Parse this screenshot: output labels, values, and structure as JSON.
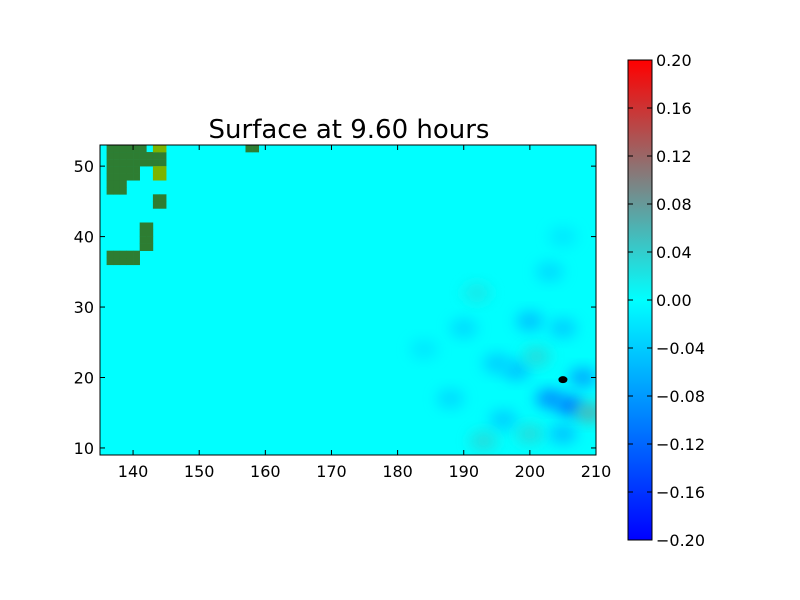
{
  "chart_data": {
    "type": "heatmap",
    "title": "Surface at 9.60 hours",
    "xlabel": "",
    "ylabel": "",
    "xlim": [
      135,
      210
    ],
    "ylim": [
      9,
      53
    ],
    "x_ticks": [
      "140",
      "150",
      "160",
      "170",
      "180",
      "190",
      "200",
      "210"
    ],
    "y_ticks": [
      "10",
      "20",
      "30",
      "40",
      "50"
    ],
    "colorbar": {
      "range": [
        -0.2,
        0.2
      ],
      "ticks": [
        "0.20",
        "0.16",
        "0.12",
        "0.08",
        "0.04",
        "0.00",
        "−0.04",
        "−0.08",
        "−0.12",
        "−0.16",
        "−0.20"
      ],
      "colors": [
        {
          "value": -0.2,
          "color": "#0000ff"
        },
        {
          "value": -0.1,
          "color": "#0080ff"
        },
        {
          "value": 0.0,
          "color": "#00ffff"
        },
        {
          "value": 0.05,
          "color": "#40c0c0"
        },
        {
          "value": 0.1,
          "color": "#808080"
        },
        {
          "value": 0.15,
          "color": "#c04040"
        },
        {
          "value": 0.2,
          "color": "#ff0000"
        }
      ]
    },
    "background_value": 0.0,
    "land_color": "#2e7d32",
    "shallow_land_color": "#7cb300",
    "land_cells": [
      {
        "lon": 136,
        "lat": 50
      },
      {
        "lon": 137,
        "lat": 50
      },
      {
        "lon": 138,
        "lat": 50
      },
      {
        "lon": 139,
        "lat": 50
      },
      {
        "lon": 140,
        "lat": 50
      },
      {
        "lon": 141,
        "lat": 50
      },
      {
        "lon": 142,
        "lat": 50
      },
      {
        "lon": 136,
        "lat": 51
      },
      {
        "lon": 137,
        "lat": 51
      },
      {
        "lon": 138,
        "lat": 51
      },
      {
        "lon": 139,
        "lat": 51
      },
      {
        "lon": 140,
        "lat": 51
      },
      {
        "lon": 141,
        "lat": 51
      },
      {
        "lon": 142,
        "lat": 51
      },
      {
        "lon": 136,
        "lat": 52
      },
      {
        "lon": 137,
        "lat": 52
      },
      {
        "lon": 138,
        "lat": 52
      },
      {
        "lon": 139,
        "lat": 52
      },
      {
        "lon": 140,
        "lat": 52
      },
      {
        "lon": 141,
        "lat": 52
      },
      {
        "lon": 136,
        "lat": 48
      },
      {
        "lon": 137,
        "lat": 48
      },
      {
        "lon": 138,
        "lat": 48
      },
      {
        "lon": 139,
        "lat": 48
      },
      {
        "lon": 140,
        "lat": 48
      },
      {
        "lon": 136,
        "lat": 49
      },
      {
        "lon": 137,
        "lat": 49
      },
      {
        "lon": 138,
        "lat": 49
      },
      {
        "lon": 139,
        "lat": 49
      },
      {
        "lon": 140,
        "lat": 49
      },
      {
        "lon": 136,
        "lat": 47
      },
      {
        "lon": 137,
        "lat": 47
      },
      {
        "lon": 138,
        "lat": 47
      },
      {
        "lon": 136,
        "lat": 46
      },
      {
        "lon": 137,
        "lat": 46
      },
      {
        "lon": 138,
        "lat": 46
      },
      {
        "lon": 143,
        "lat": 50
      },
      {
        "lon": 144,
        "lat": 50
      },
      {
        "lon": 143,
        "lat": 51
      },
      {
        "lon": 144,
        "lat": 51
      },
      {
        "lon": 143,
        "lat": 44
      },
      {
        "lon": 144,
        "lat": 44
      },
      {
        "lon": 143,
        "lat": 45
      },
      {
        "lon": 144,
        "lat": 45
      },
      {
        "lon": 141,
        "lat": 38
      },
      {
        "lon": 142,
        "lat": 38
      },
      {
        "lon": 141,
        "lat": 39
      },
      {
        "lon": 142,
        "lat": 39
      },
      {
        "lon": 141,
        "lat": 40
      },
      {
        "lon": 142,
        "lat": 40
      },
      {
        "lon": 141,
        "lat": 41
      },
      {
        "lon": 142,
        "lat": 41
      },
      {
        "lon": 136,
        "lat": 36
      },
      {
        "lon": 137,
        "lat": 36
      },
      {
        "lon": 138,
        "lat": 36
      },
      {
        "lon": 139,
        "lat": 36
      },
      {
        "lon": 140,
        "lat": 36
      },
      {
        "lon": 136,
        "lat": 37
      },
      {
        "lon": 137,
        "lat": 37
      },
      {
        "lon": 138,
        "lat": 37
      },
      {
        "lon": 139,
        "lat": 37
      },
      {
        "lon": 140,
        "lat": 37
      },
      {
        "lon": 157,
        "lat": 52
      },
      {
        "lon": 158,
        "lat": 52
      }
    ],
    "shallow_land_cells": [
      {
        "lon": 143,
        "lat": 52
      },
      {
        "lon": 144,
        "lat": 52
      },
      {
        "lon": 143,
        "lat": 48
      },
      {
        "lon": 144,
        "lat": 48
      },
      {
        "lon": 143,
        "lat": 49
      },
      {
        "lon": 144,
        "lat": 49
      }
    ],
    "wave_features": [
      {
        "lon": 198,
        "lat": 21,
        "value": -0.05
      },
      {
        "lon": 201,
        "lat": 23,
        "value": 0.03
      },
      {
        "lon": 203,
        "lat": 17,
        "value": -0.09
      },
      {
        "lon": 206,
        "lat": 16,
        "value": -0.11
      },
      {
        "lon": 208,
        "lat": 20,
        "value": -0.07
      },
      {
        "lon": 209,
        "lat": 15,
        "value": 0.06
      },
      {
        "lon": 200,
        "lat": 28,
        "value": -0.05
      },
      {
        "lon": 205,
        "lat": 27,
        "value": -0.04
      },
      {
        "lon": 195,
        "lat": 22,
        "value": -0.04
      },
      {
        "lon": 196,
        "lat": 14,
        "value": -0.04
      },
      {
        "lon": 200,
        "lat": 12,
        "value": 0.03
      },
      {
        "lon": 205,
        "lat": 12,
        "value": -0.05
      },
      {
        "lon": 190,
        "lat": 27,
        "value": -0.03
      },
      {
        "lon": 188,
        "lat": 17,
        "value": -0.03
      },
      {
        "lon": 192,
        "lat": 32,
        "value": 0.02
      },
      {
        "lon": 203,
        "lat": 35,
        "value": -0.03
      },
      {
        "lon": 184,
        "lat": 24,
        "value": -0.02
      },
      {
        "lon": 193,
        "lat": 11,
        "value": 0.03
      },
      {
        "lon": 205,
        "lat": 40,
        "value": -0.02
      }
    ],
    "island_markers": [
      {
        "lon": 205,
        "lat": 19.7,
        "value": "black"
      }
    ]
  }
}
